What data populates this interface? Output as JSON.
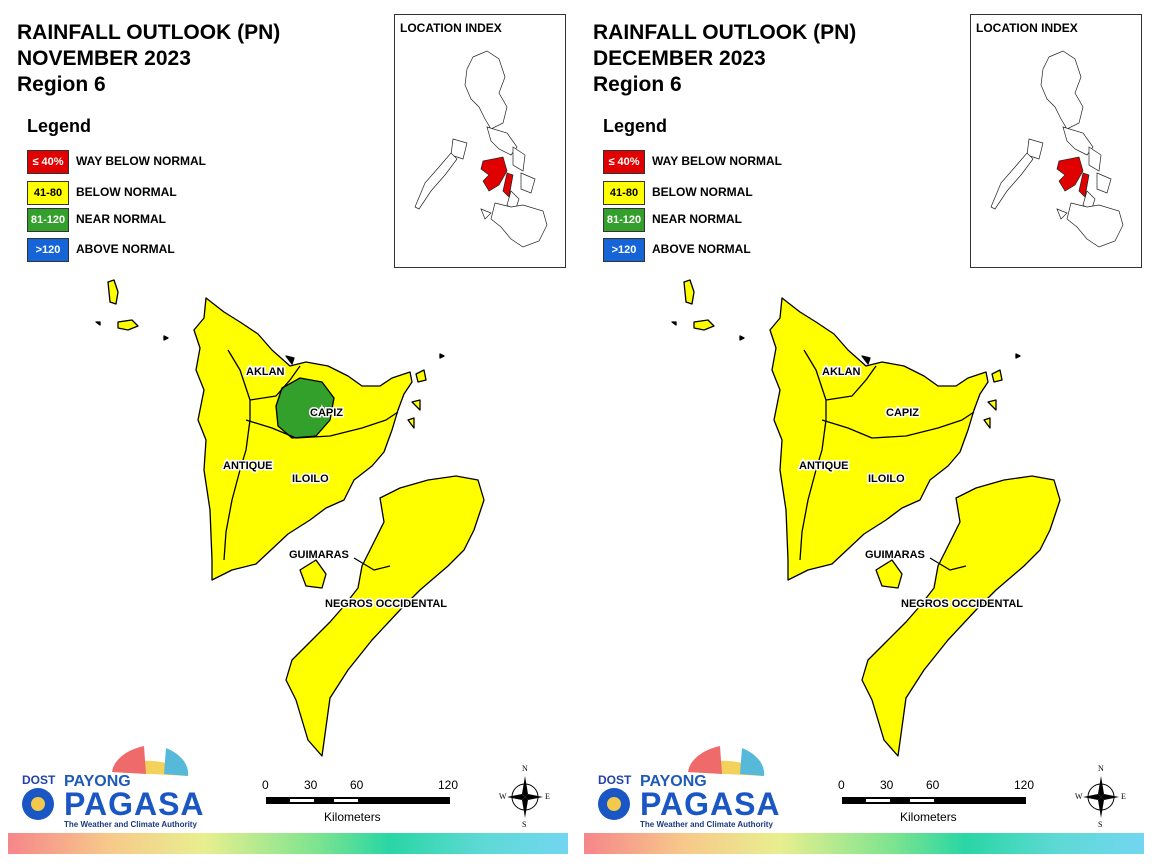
{
  "colors": {
    "way_below_normal": "#e00000",
    "below_normal": "#ffff00",
    "near_normal": "#33a02c",
    "above_normal": "#1565d8",
    "boundary": "#000000"
  },
  "legend": {
    "title": "Legend",
    "items": [
      {
        "range": "≤ 40%",
        "label": "WAY BELOW NORMAL",
        "color": "#e00000",
        "text_color": "#ffffff"
      },
      {
        "range": "41-80",
        "label": "BELOW NORMAL",
        "color": "#ffff00",
        "text_color": "#000000"
      },
      {
        "range": "81-120",
        "label": "NEAR NORMAL",
        "color": "#33a02c",
        "text_color": "#ffffff"
      },
      {
        "range": ">120",
        "label": "ABOVE NORMAL",
        "color": "#1565d8",
        "text_color": "#ffffff"
      }
    ]
  },
  "location_index": {
    "title": "LOCATION INDEX"
  },
  "provinces": [
    "AKLAN",
    "CAPIZ",
    "ANTIQUE",
    "ILOILO",
    "GUIMARAS",
    "NEGROS OCCIDENTAL"
  ],
  "scale": {
    "ticks": [
      "0",
      "30",
      "60",
      "120"
    ],
    "units": "Kilometers"
  },
  "compass": {
    "n": "N",
    "s": "S",
    "e": "E",
    "w": "W"
  },
  "logo": {
    "dost": "DOST",
    "payong": "PAYONG",
    "pagasa": "PAGASA",
    "tagline": "The Weather and Climate Authority"
  },
  "maps": [
    {
      "title_line1": "RAINFALL OUTLOOK (PN)",
      "title_line2": "NOVEMBER 2023",
      "title_line3": "Region 6",
      "province_categories": {
        "AKLAN": "BELOW NORMAL",
        "CAPIZ": "BELOW NORMAL",
        "ANTIQUE": "BELOW NORMAL",
        "ILOILO": "BELOW NORMAL",
        "GUIMARAS": "BELOW NORMAL",
        "NEGROS OCCIDENTAL": "BELOW NORMAL"
      },
      "near_normal_area": "CAPIZ"
    },
    {
      "title_line1": "RAINFALL OUTLOOK (PN)",
      "title_line2": "DECEMBER 2023",
      "title_line3": "Region 6",
      "province_categories": {
        "AKLAN": "BELOW NORMAL",
        "CAPIZ": "BELOW NORMAL",
        "ANTIQUE": "BELOW NORMAL",
        "ILOILO": "BELOW NORMAL",
        "GUIMARAS": "BELOW NORMAL",
        "NEGROS OCCIDENTAL": "BELOW NORMAL"
      },
      "near_normal_area": ""
    }
  ]
}
